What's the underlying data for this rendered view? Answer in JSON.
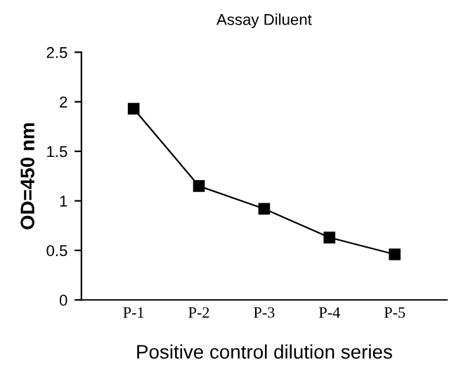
{
  "chart_data": {
    "type": "line",
    "title": "Assay Diluent",
    "xlabel": "Positive control dilution series",
    "ylabel": "OD=450 nm",
    "categories": [
      "P-1",
      "P-2",
      "P-3",
      "P-4",
      "P-5"
    ],
    "series": [
      {
        "color": "#000000",
        "values": [
          1.93,
          1.15,
          0.92,
          0.63,
          0.46
        ]
      }
    ],
    "ylim": [
      0,
      2.5
    ],
    "yticks": [
      0,
      {
        "value": 0.5,
        "label": "0.5"
      },
      1,
      {
        "value": 1.5,
        "label": "1.5"
      },
      2,
      {
        "value": 2.5,
        "label": "2.5"
      }
    ],
    "marker": "square",
    "line_style": "solid",
    "grid": false,
    "legend": false
  }
}
